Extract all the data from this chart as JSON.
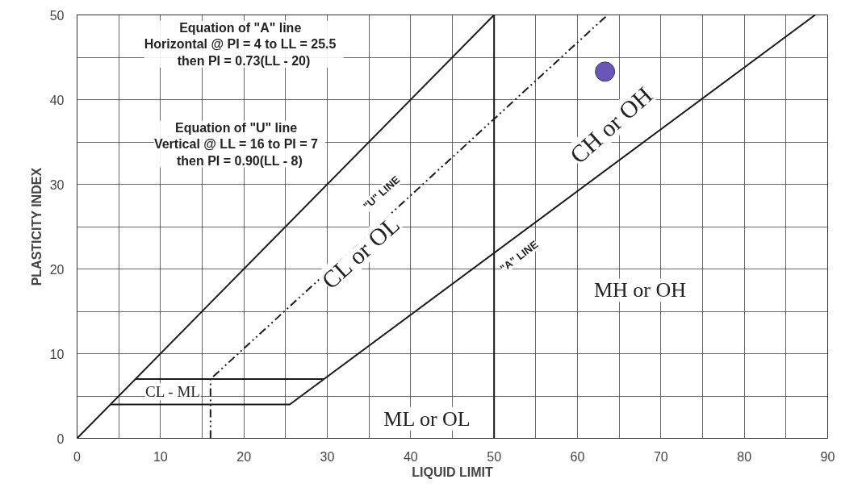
{
  "chart_data": {
    "type": "line",
    "xlabel": "LIQUID LIMIT",
    "ylabel": "PLASTICITY INDEX",
    "xlim": [
      0,
      90
    ],
    "ylim": [
      0,
      50
    ],
    "xticks": [
      0,
      {
        "value": 5,
        "label": null
      },
      10,
      {
        "value": 15,
        "label": null
      },
      20,
      {
        "value": 25,
        "label": null
      },
      30,
      {
        "value": 35,
        "label": null
      },
      40,
      {
        "value": 45,
        "label": null
      },
      50,
      {
        "value": 55,
        "label": null
      },
      60,
      {
        "value": 65,
        "label": null
      },
      70,
      {
        "value": 75,
        "label": null
      },
      80,
      {
        "value": 85,
        "label": null
      },
      90
    ],
    "yticks": [
      0,
      {
        "value": 5,
        "label": null
      },
      10,
      {
        "value": 15,
        "label": null
      },
      20,
      {
        "value": 25,
        "label": null
      },
      30,
      {
        "value": 35,
        "label": null
      },
      40,
      {
        "value": 45,
        "label": null
      },
      50
    ],
    "grid": true,
    "series": [
      {
        "color": "#1a1a1a",
        "x": [
          0,
          50
        ],
        "values": [
          0,
          50
        ]
      },
      {
        "color": "#1a1a1a",
        "x": [
          4,
          25.5,
          88.5
        ],
        "values": [
          4,
          4,
          50
        ]
      },
      {
        "color": "#1a1a1a",
        "x": [
          7,
          29.6
        ],
        "values": [
          7,
          7
        ]
      },
      {
        "color": "#1a1a1a",
        "line_style": "dashed",
        "x": [
          16,
          16,
          63.6
        ],
        "values": [
          0,
          7,
          50
        ]
      },
      {
        "type": "scatter",
        "color": "#6a55b8",
        "marker": "circle",
        "x": [
          63.3
        ],
        "values": [
          43.3
        ]
      }
    ],
    "ref_lines": [
      {
        "axis": "x",
        "value": 50,
        "label": null,
        "color": "#1a1a1a"
      }
    ],
    "annotations": [
      "Equation of  \"A\"  line\nHorizontal @ PI = 4  to  LL = 25.5\nthen PI = 0.73(LL - 20)",
      "Equation of  \"U\"  line\nVertical @ LL = 16  to  PI = 7\nthen PI = 0.90(LL - 8)",
      "CL or OL",
      "CH or OH",
      "MH or OH",
      "ML or OL",
      "CL - ML",
      "\"U\" LINE",
      "\"A\" LINE"
    ]
  }
}
